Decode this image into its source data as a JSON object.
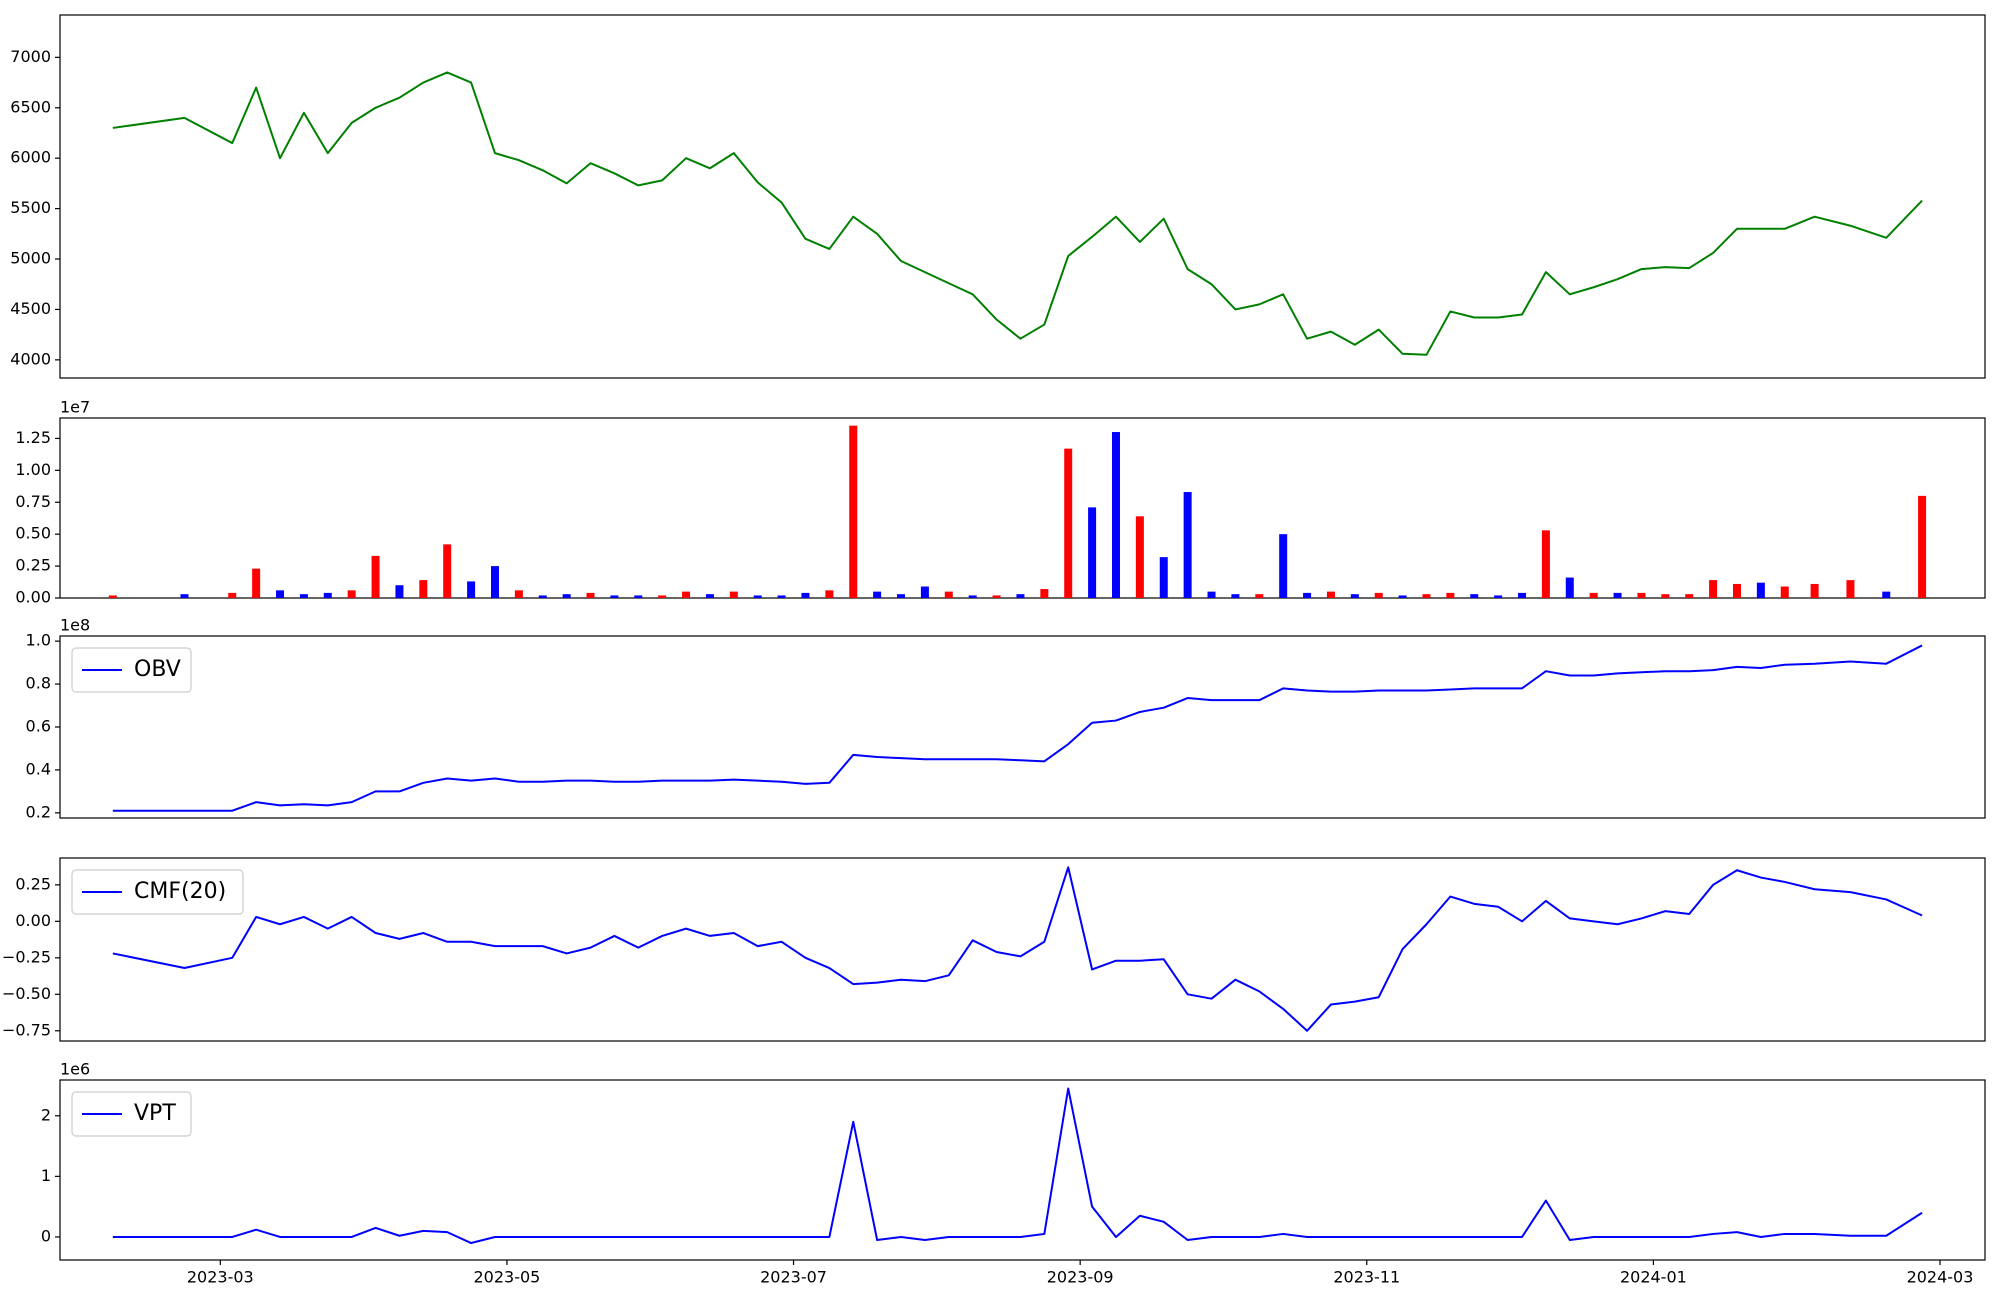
{
  "chart_data": [
    {
      "type": "line",
      "color": "#008000",
      "values": [
        6300,
        6400,
        6150,
        6700,
        6000,
        6450,
        6050,
        6350,
        6500,
        6600,
        6750,
        6850,
        6750,
        6050,
        5980,
        5880,
        5750,
        5950,
        5850,
        5730,
        5780,
        6000,
        5900,
        6050,
        5760,
        5560,
        5200,
        5100,
        5420,
        5250,
        4980,
        4870,
        4760,
        4650,
        4400,
        4210,
        4350,
        5030,
        5220,
        5420,
        5170,
        5400,
        4900,
        4750,
        4500,
        4550,
        4650,
        4210,
        4280,
        4150,
        4300,
        4060,
        4050,
        4480,
        4420,
        4420,
        4450,
        4870,
        4650,
        4720,
        4800,
        4900,
        4920,
        4910,
        5060,
        5300,
        5300,
        5300,
        5420,
        5330,
        5210,
        5580
      ],
      "ylim": [
        3820,
        7420
      ],
      "yticks": [
        4000,
        4500,
        5000,
        5500,
        6000,
        6500,
        7000
      ]
    },
    {
      "type": "bar",
      "offset_label": "1e7",
      "values": [
        0.02,
        0.03,
        0.04,
        0.23,
        0.06,
        0.03,
        0.04,
        0.06,
        0.33,
        0.1,
        0.14,
        0.42,
        0.13,
        0.25,
        0.06,
        0.02,
        0.03,
        0.04,
        0.02,
        0.02,
        0.02,
        0.05,
        0.03,
        0.05,
        0.02,
        0.02,
        0.04,
        0.06,
        1.35,
        0.05,
        0.03,
        0.09,
        0.05,
        0.02,
        0.02,
        0.03,
        0.07,
        1.17,
        0.71,
        1.3,
        0.64,
        0.32,
        0.83,
        0.05,
        0.03,
        0.03,
        0.5,
        0.04,
        0.05,
        0.03,
        0.04,
        0.02,
        0.03,
        0.04,
        0.03,
        0.02,
        0.04,
        0.53,
        0.16,
        0.04,
        0.04,
        0.04,
        0.03,
        0.03,
        0.14,
        0.11,
        0.12,
        0.09,
        0.11,
        0.14,
        0.05,
        0.8
      ],
      "colors": [
        "#ff0000",
        "#0000ff",
        "#ff0000",
        "#ff0000",
        "#0000ff",
        "#0000ff",
        "#0000ff",
        "#ff0000",
        "#ff0000",
        "#0000ff",
        "#ff0000",
        "#ff0000",
        "#0000ff",
        "#0000ff",
        "#ff0000",
        "#0000ff",
        "#0000ff",
        "#ff0000",
        "#0000ff",
        "#0000ff",
        "#ff0000",
        "#ff0000",
        "#0000ff",
        "#ff0000",
        "#0000ff",
        "#0000ff",
        "#0000ff",
        "#ff0000",
        "#ff0000",
        "#0000ff",
        "#0000ff",
        "#0000ff",
        "#ff0000",
        "#0000ff",
        "#ff0000",
        "#0000ff",
        "#ff0000",
        "#ff0000",
        "#0000ff",
        "#0000ff",
        "#ff0000",
        "#0000ff",
        "#0000ff",
        "#0000ff",
        "#0000ff",
        "#ff0000",
        "#0000ff",
        "#0000ff",
        "#ff0000",
        "#0000ff",
        "#ff0000",
        "#0000ff",
        "#ff0000",
        "#ff0000",
        "#0000ff",
        "#0000ff",
        "#0000ff",
        "#ff0000",
        "#0000ff",
        "#ff0000",
        "#0000ff",
        "#ff0000",
        "#ff0000",
        "#ff0000",
        "#ff0000",
        "#ff0000",
        "#0000ff",
        "#ff0000",
        "#ff0000",
        "#ff0000",
        "#0000ff",
        "#ff0000"
      ],
      "ylim": [
        0,
        1.41
      ],
      "yticks": [
        {
          "value": 0,
          "label": "0.00"
        },
        0.25,
        {
          "value": 0.5,
          "label": "0.50"
        },
        0.75,
        {
          "value": 1,
          "label": "1.00"
        },
        1.25
      ]
    },
    {
      "type": "line",
      "offset_label": "1e8",
      "legend": "upper left",
      "series": [
        {
          "name": "OBV",
          "color": "#0000ff",
          "values": [
            0.21,
            0.21,
            0.21,
            0.25,
            0.235,
            0.24,
            0.235,
            0.25,
            0.3,
            0.3,
            0.34,
            0.36,
            0.35,
            0.36,
            0.345,
            0.345,
            0.35,
            0.35,
            0.345,
            0.345,
            0.35,
            0.35,
            0.35,
            0.355,
            0.35,
            0.345,
            0.335,
            0.34,
            0.47,
            0.46,
            0.455,
            0.45,
            0.45,
            0.45,
            0.45,
            0.445,
            0.44,
            0.52,
            0.62,
            0.63,
            0.67,
            0.69,
            0.735,
            0.725,
            0.725,
            0.725,
            0.78,
            0.77,
            0.765,
            0.765,
            0.77,
            0.77,
            0.77,
            0.775,
            0.78,
            0.78,
            0.78,
            0.86,
            0.84,
            0.84,
            0.85,
            0.855,
            0.86,
            0.86,
            0.865,
            0.88,
            0.875,
            0.89,
            0.895,
            0.905,
            0.895,
            0.98
          ]
        }
      ],
      "ylim": [
        0.176,
        1.024
      ],
      "yticks": [
        0.2,
        0.4,
        0.6,
        0.8,
        {
          "value": 1,
          "label": "1.0"
        }
      ]
    },
    {
      "type": "line",
      "legend": "upper left",
      "series": [
        {
          "name": "CMF(20)",
          "color": "#0000ff",
          "values": [
            -0.22,
            -0.32,
            -0.25,
            0.03,
            -0.02,
            0.03,
            -0.05,
            0.03,
            -0.08,
            -0.12,
            -0.08,
            -0.14,
            -0.14,
            -0.17,
            -0.17,
            -0.17,
            -0.22,
            -0.18,
            -0.1,
            -0.18,
            -0.1,
            -0.05,
            -0.1,
            -0.08,
            -0.17,
            -0.14,
            -0.25,
            -0.32,
            -0.43,
            -0.42,
            -0.4,
            -0.41,
            -0.37,
            -0.13,
            -0.21,
            -0.24,
            -0.14,
            0.37,
            -0.33,
            -0.27,
            -0.27,
            -0.26,
            -0.5,
            -0.53,
            -0.4,
            -0.48,
            -0.6,
            -0.75,
            -0.57,
            -0.55,
            -0.52,
            -0.19,
            -0.02,
            0.17,
            0.12,
            0.1,
            0,
            0.14,
            0.02,
            0,
            -0.02,
            0.02,
            0.07,
            0.05,
            0.25,
            0.35,
            0.3,
            0.27,
            0.22,
            0.2,
            0.15,
            0.04
          ]
        }
      ],
      "ylim": [
        -0.82,
        0.434
      ],
      "yticks": [
        {
          "value": -0.75,
          "label": "−0.75"
        },
        {
          "value": -0.5,
          "label": "−0.50"
        },
        {
          "value": -0.25,
          "label": "−0.25"
        },
        {
          "value": 0,
          "label": "0.00"
        },
        0.25
      ]
    },
    {
      "type": "line",
      "offset_label": "1e6",
      "legend": "upper left",
      "series": [
        {
          "name": "VPT",
          "color": "#0000ff",
          "values": [
            0,
            0,
            0,
            0.12,
            0,
            0,
            0,
            0,
            0.15,
            0.02,
            0.1,
            0.08,
            -0.1,
            0,
            0,
            0,
            0,
            0,
            0,
            0,
            0,
            0,
            0,
            0,
            0,
            0,
            0,
            0,
            1.9,
            -0.05,
            0,
            -0.05,
            0,
            0,
            0,
            0,
            0.05,
            2.45,
            0.5,
            0,
            0.35,
            0.25,
            -0.05,
            0,
            0,
            0,
            0.05,
            0,
            0,
            0,
            0,
            0,
            0,
            0,
            0,
            0,
            0,
            0.6,
            -0.05,
            0,
            0,
            0,
            0,
            0,
            0.05,
            0.08,
            0,
            0.05,
            0.05,
            0.02,
            0.02,
            0.4
          ]
        }
      ],
      "ylim": [
        -0.38,
        2.59
      ],
      "yticks": [
        0,
        1,
        2
      ],
      "x": [
        "2023-02",
        "2023-02",
        "2023-03",
        "2023-03",
        "2023-03",
        "2023-03",
        "2023-03",
        "2023-03",
        "2023-04",
        "2023-04",
        "2023-04",
        "2023-04",
        "2023-04",
        "2023-04",
        "2023-05",
        "2023-05",
        "2023-05",
        "2023-05",
        "2023-05",
        "2023-05",
        "2023-06",
        "2023-06",
        "2023-06",
        "2023-06",
        "2023-06",
        "2023-06",
        "2023-07",
        "2023-07",
        "2023-07",
        "2023-07",
        "2023-07",
        "2023-07",
        "2023-08",
        "2023-08",
        "2023-08",
        "2023-08",
        "2023-08",
        "2023-08",
        "2023-09",
        "2023-09",
        "2023-09",
        "2023-09",
        "2023-09",
        "2023-09",
        "2023-10",
        "2023-10",
        "2023-10",
        "2023-10",
        "2023-10",
        "2023-10",
        "2023-11",
        "2023-11",
        "2023-11",
        "2023-11",
        "2023-11",
        "2023-11",
        "2023-12",
        "2023-12",
        "2023-12",
        "2023-12",
        "2023-12",
        "2023-12",
        "2024-01",
        "2024-01",
        "2024-01",
        "2024-01",
        "2024-01",
        "2024-01",
        "2024-02",
        "2024-02",
        "2024-02",
        "2024-02"
      ],
      "xlim": [
        "2023-02",
        "2024-03"
      ],
      "xticks": [
        "2023-03",
        "2023-05",
        "2023-07",
        "2023-09",
        "2023-11",
        "2024-01",
        "2024-03"
      ]
    }
  ]
}
